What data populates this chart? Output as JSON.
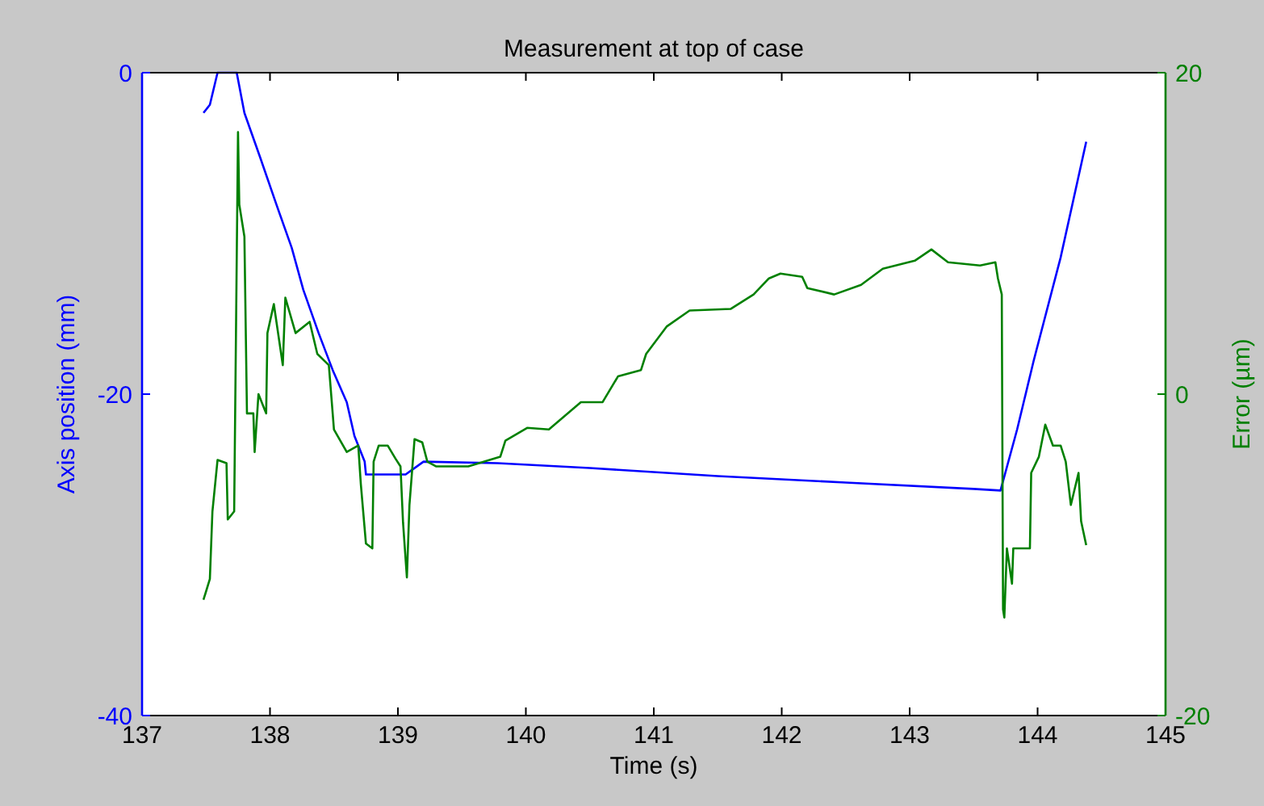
{
  "chart_data": {
    "type": "line",
    "title": "Measurement at top of case",
    "xlabel": "Time (s)",
    "ylabel": "Axis position (mm)",
    "y2label": "Error (µm)",
    "xlim": [
      137,
      145
    ],
    "xticks": [
      137,
      138,
      139,
      140,
      141,
      142,
      143,
      144,
      145
    ],
    "ylim": [
      -40,
      0
    ],
    "yticks": [
      -40,
      -20,
      0
    ],
    "y2lim": [
      -20,
      20
    ],
    "y2ticks": [
      -20,
      0,
      20
    ],
    "grid": false,
    "series": [
      {
        "color": "#0000ff",
        "x": [
          137.48,
          137.53,
          137.59,
          137.74,
          137.8,
          137.92,
          138.05,
          138.17,
          138.26,
          138.38,
          138.49,
          138.6,
          138.66,
          138.74,
          138.75,
          139.06,
          139.2,
          139.78,
          140.5,
          141.5,
          142.5,
          143.5,
          143.71,
          143.84,
          143.97,
          144.18,
          144.38
        ],
        "values": [
          -2.5,
          -2,
          0,
          0,
          -2.5,
          -5.2,
          -8.2,
          -10.9,
          -13.5,
          -16.2,
          -18.5,
          -20.5,
          -22.6,
          -24.2,
          -25,
          -25,
          -24.2,
          -24.3,
          -24.6,
          -25.1,
          -25.5,
          -25.9,
          -26,
          -22.2,
          -17.9,
          -11.5,
          -4.3
        ]
      },
      {
        "color": "#008000",
        "axis": "y2",
        "x": [
          137.48,
          137.53,
          137.55,
          137.59,
          137.66,
          137.67,
          137.72,
          137.75,
          137.76,
          137.8,
          137.82,
          137.87,
          137.88,
          137.91,
          137.97,
          137.98,
          138.03,
          138.1,
          138.12,
          138.2,
          138.31,
          138.37,
          138.46,
          138.5,
          138.6,
          138.69,
          138.71,
          138.75,
          138.8,
          138.81,
          138.85,
          138.92,
          138.98,
          139.02,
          139.04,
          139.07,
          139.09,
          139.13,
          139.19,
          139.23,
          139.3,
          139.55,
          139.8,
          139.84,
          140.01,
          140.18,
          140.43,
          140.6,
          140.72,
          140.9,
          140.94,
          141.1,
          141.28,
          141.6,
          141.78,
          141.9,
          141.99,
          142.16,
          142.2,
          142.41,
          142.62,
          142.79,
          143.04,
          143.17,
          143.3,
          143.55,
          143.67,
          143.69,
          143.72,
          143.73,
          143.74,
          143.76,
          143.8,
          143.81,
          143.94,
          143.95,
          144.01,
          144.06,
          144.12,
          144.18,
          144.22,
          144.26,
          144.32,
          144.34,
          144.38
        ],
        "values": [
          -12.8,
          -11.5,
          -7.3,
          -4.1,
          -4.3,
          -7.8,
          -7.3,
          16.3,
          11.8,
          9.8,
          -1.2,
          -1.2,
          -3.6,
          0,
          -1.2,
          3.8,
          5.6,
          1.8,
          6,
          3.8,
          4.5,
          2.5,
          1.8,
          -2.2,
          -3.6,
          -3.2,
          -5.6,
          -9.3,
          -9.6,
          -4.2,
          -3.2,
          -3.2,
          -4,
          -4.5,
          -8,
          -11.4,
          -6.9,
          -2.8,
          -3,
          -4.2,
          -4.5,
          -4.5,
          -3.9,
          -2.9,
          -2.1,
          -2.2,
          -0.5,
          -0.5,
          1.1,
          1.5,
          2.5,
          4.2,
          5.2,
          5.3,
          6.2,
          7.2,
          7.5,
          7.3,
          6.6,
          6.2,
          6.8,
          7.8,
          8.3,
          9,
          8.2,
          8,
          8.2,
          7.2,
          6.2,
          -13.4,
          -13.9,
          -9.6,
          -11.8,
          -9.6,
          -9.6,
          -4.9,
          -3.9,
          -1.9,
          -3.2,
          -3.2,
          -4.2,
          -6.9,
          -4.9,
          -7.9,
          -9.4
        ]
      }
    ]
  }
}
